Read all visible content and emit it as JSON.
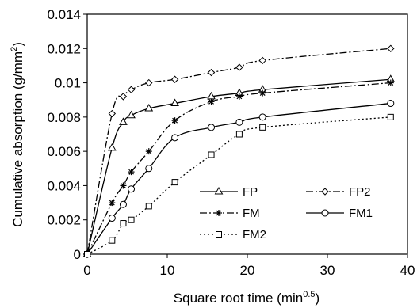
{
  "chart_data": {
    "type": "line",
    "xlabel_main": "Square root time (min",
    "xlabel_sup": "0.5",
    "xlabel_end": ")",
    "ylabel_main": "Cumulative absorption (g/mm",
    "ylabel_sup": "2",
    "ylabel_end": ")",
    "xlim": [
      0,
      40
    ],
    "ylim": [
      0,
      0.014
    ],
    "x_ticks": [
      "0",
      "10",
      "20",
      "30",
      "40"
    ],
    "y_ticks": [
      "0",
      "0.002",
      "0.004",
      "0.006",
      "0.008",
      "0.01",
      "0.012",
      "0.014"
    ],
    "grid": false,
    "legend_position": "lower-right",
    "series": [
      {
        "name": "FP",
        "marker": "triangle",
        "line_style": "solid",
        "points": [
          [
            0,
            0
          ],
          [
            3.1,
            0.0062
          ],
          [
            4.5,
            0.0077
          ],
          [
            5.5,
            0.0081
          ],
          [
            7.7,
            0.0085
          ],
          [
            10.95,
            0.0088
          ],
          [
            15.5,
            0.0092
          ],
          [
            19,
            0.0094
          ],
          [
            21.9,
            0.0096
          ],
          [
            37.9,
            0.0102
          ]
        ]
      },
      {
        "name": "FP2",
        "marker": "diamond",
        "line_style": "dash-dot",
        "points": [
          [
            0,
            0
          ],
          [
            3.1,
            0.0082
          ],
          [
            4.5,
            0.0092
          ],
          [
            5.5,
            0.0096
          ],
          [
            7.7,
            0.01
          ],
          [
            10.95,
            0.0102
          ],
          [
            15.5,
            0.0106
          ],
          [
            19,
            0.0109
          ],
          [
            21.9,
            0.0113
          ],
          [
            37.9,
            0.012
          ]
        ]
      },
      {
        "name": "FM",
        "marker": "star",
        "line_style": "dash-dot",
        "points": [
          [
            0,
            0
          ],
          [
            3.1,
            0.003
          ],
          [
            4.5,
            0.004
          ],
          [
            5.5,
            0.0048
          ],
          [
            7.7,
            0.006
          ],
          [
            10.95,
            0.0078
          ],
          [
            15.5,
            0.0089
          ],
          [
            19,
            0.0092
          ],
          [
            21.9,
            0.0094
          ],
          [
            37.9,
            0.01
          ]
        ]
      },
      {
        "name": "FM1",
        "marker": "circle",
        "line_style": "solid",
        "points": [
          [
            0,
            0
          ],
          [
            3.1,
            0.0021
          ],
          [
            4.5,
            0.0029
          ],
          [
            5.5,
            0.0038
          ],
          [
            7.7,
            0.005
          ],
          [
            10.95,
            0.0068
          ],
          [
            15.5,
            0.0074
          ],
          [
            19,
            0.0077
          ],
          [
            21.9,
            0.008
          ],
          [
            37.9,
            0.0088
          ]
        ]
      },
      {
        "name": "FM2",
        "marker": "square",
        "line_style": "dotted",
        "points": [
          [
            0,
            0
          ],
          [
            3.1,
            0.0008
          ],
          [
            4.5,
            0.0018
          ],
          [
            5.5,
            0.002
          ],
          [
            7.7,
            0.0028
          ],
          [
            10.95,
            0.0042
          ],
          [
            15.5,
            0.0058
          ],
          [
            19,
            0.007
          ],
          [
            21.9,
            0.0074
          ],
          [
            37.9,
            0.008
          ]
        ]
      }
    ]
  }
}
